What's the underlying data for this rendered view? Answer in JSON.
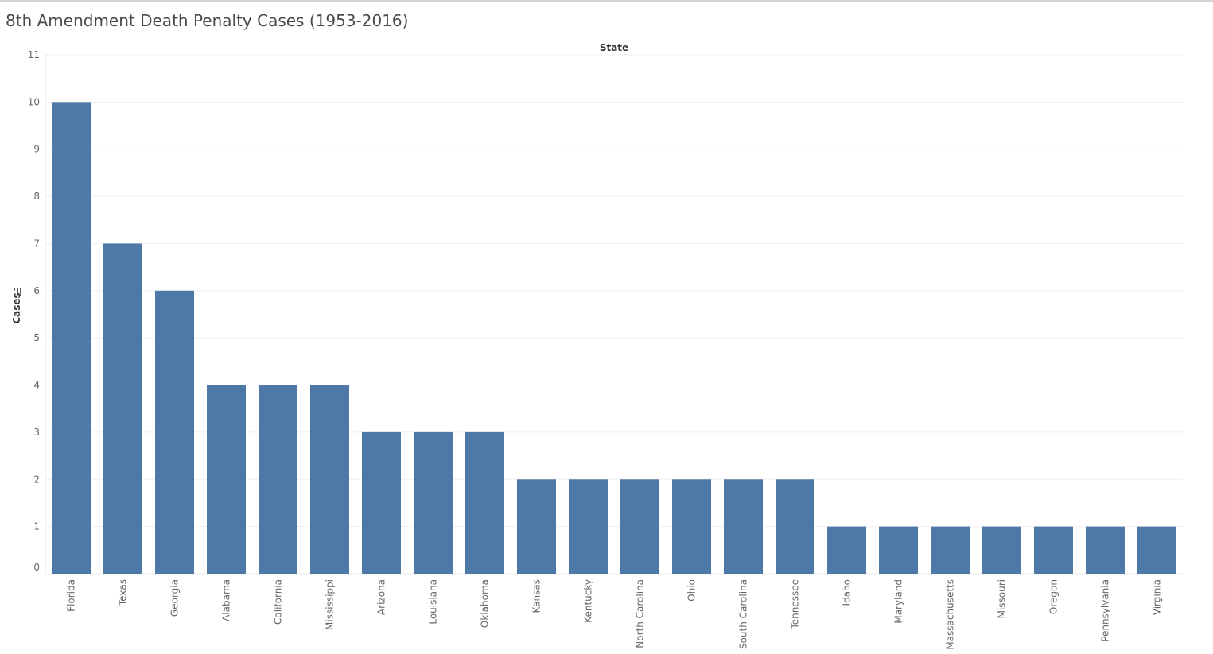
{
  "chart_data": {
    "type": "bar",
    "title": "8th Amendment Death Penalty Cases (1953-2016)",
    "xlabel": "State",
    "ylabel": "Cases",
    "ylim": [
      0,
      11
    ],
    "yticks": [
      0,
      1,
      2,
      3,
      4,
      5,
      6,
      7,
      8,
      9,
      10,
      11
    ],
    "grid": true,
    "color": "#4e79a7",
    "sort_icon": "sort-descending-icon",
    "categories": [
      "Florida",
      "Texas",
      "Georgia",
      "Alabama",
      "California",
      "Mississippi",
      "Arizona",
      "Louisiana",
      "Oklahoma",
      "Kansas",
      "Kentucky",
      "North Carolina",
      "Ohio",
      "South Carolina",
      "Tennessee",
      "Idaho",
      "Maryland",
      "Massachusetts",
      "Missouri",
      "Oregon",
      "Pennsylvania",
      "Virginia"
    ],
    "values": [
      10,
      7,
      6,
      4,
      4,
      4,
      3,
      3,
      3,
      2,
      2,
      2,
      2,
      2,
      2,
      1,
      1,
      1,
      1,
      1,
      1,
      1
    ]
  }
}
